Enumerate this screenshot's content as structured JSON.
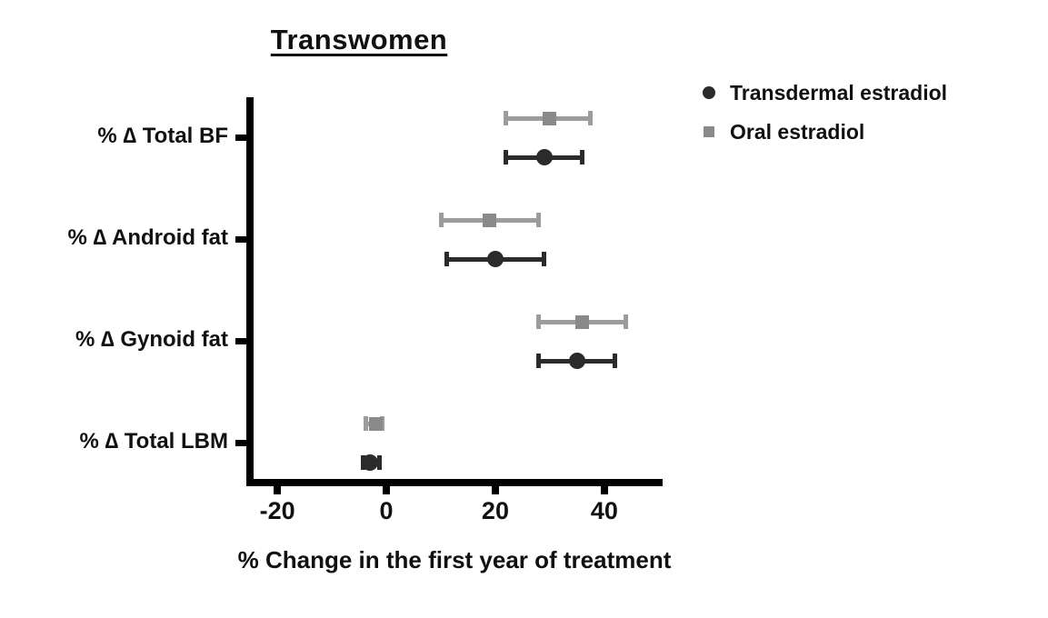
{
  "chart_data": {
    "type": "scatter",
    "subtype": "forest-dot-plot-with-error-bars",
    "title": "Transwomen",
    "xlabel": "% Change in the first year of treatment",
    "categories": [
      "% ∆ Total BF",
      "% ∆ Android fat",
      "% ∆ Gynoid fat",
      "% ∆ Total LBM"
    ],
    "x_ticks": [
      -20,
      0,
      20,
      40
    ],
    "xlim": [
      -25.7,
      50.7
    ],
    "grid": false,
    "legend_position": "top-right",
    "axis_color": "#000000",
    "series": [
      {
        "name": "Transdermal estradiol",
        "marker": "circle",
        "color": "#2b2b2b",
        "line_color": "#2b2b2b",
        "values": [
          29,
          20,
          35,
          -3
        ],
        "ci_low": [
          22,
          11,
          28,
          -4.3
        ],
        "ci_high": [
          36,
          29,
          42,
          -1.3
        ]
      },
      {
        "name": "Oral estradiol",
        "marker": "square",
        "color": "#8a8a8a",
        "line_color": "#9c9c9c",
        "values": [
          30,
          19,
          36,
          -2
        ],
        "ci_low": [
          22,
          10,
          28,
          -3.7
        ],
        "ci_high": [
          37.5,
          28,
          44,
          -0.7
        ]
      }
    ]
  }
}
